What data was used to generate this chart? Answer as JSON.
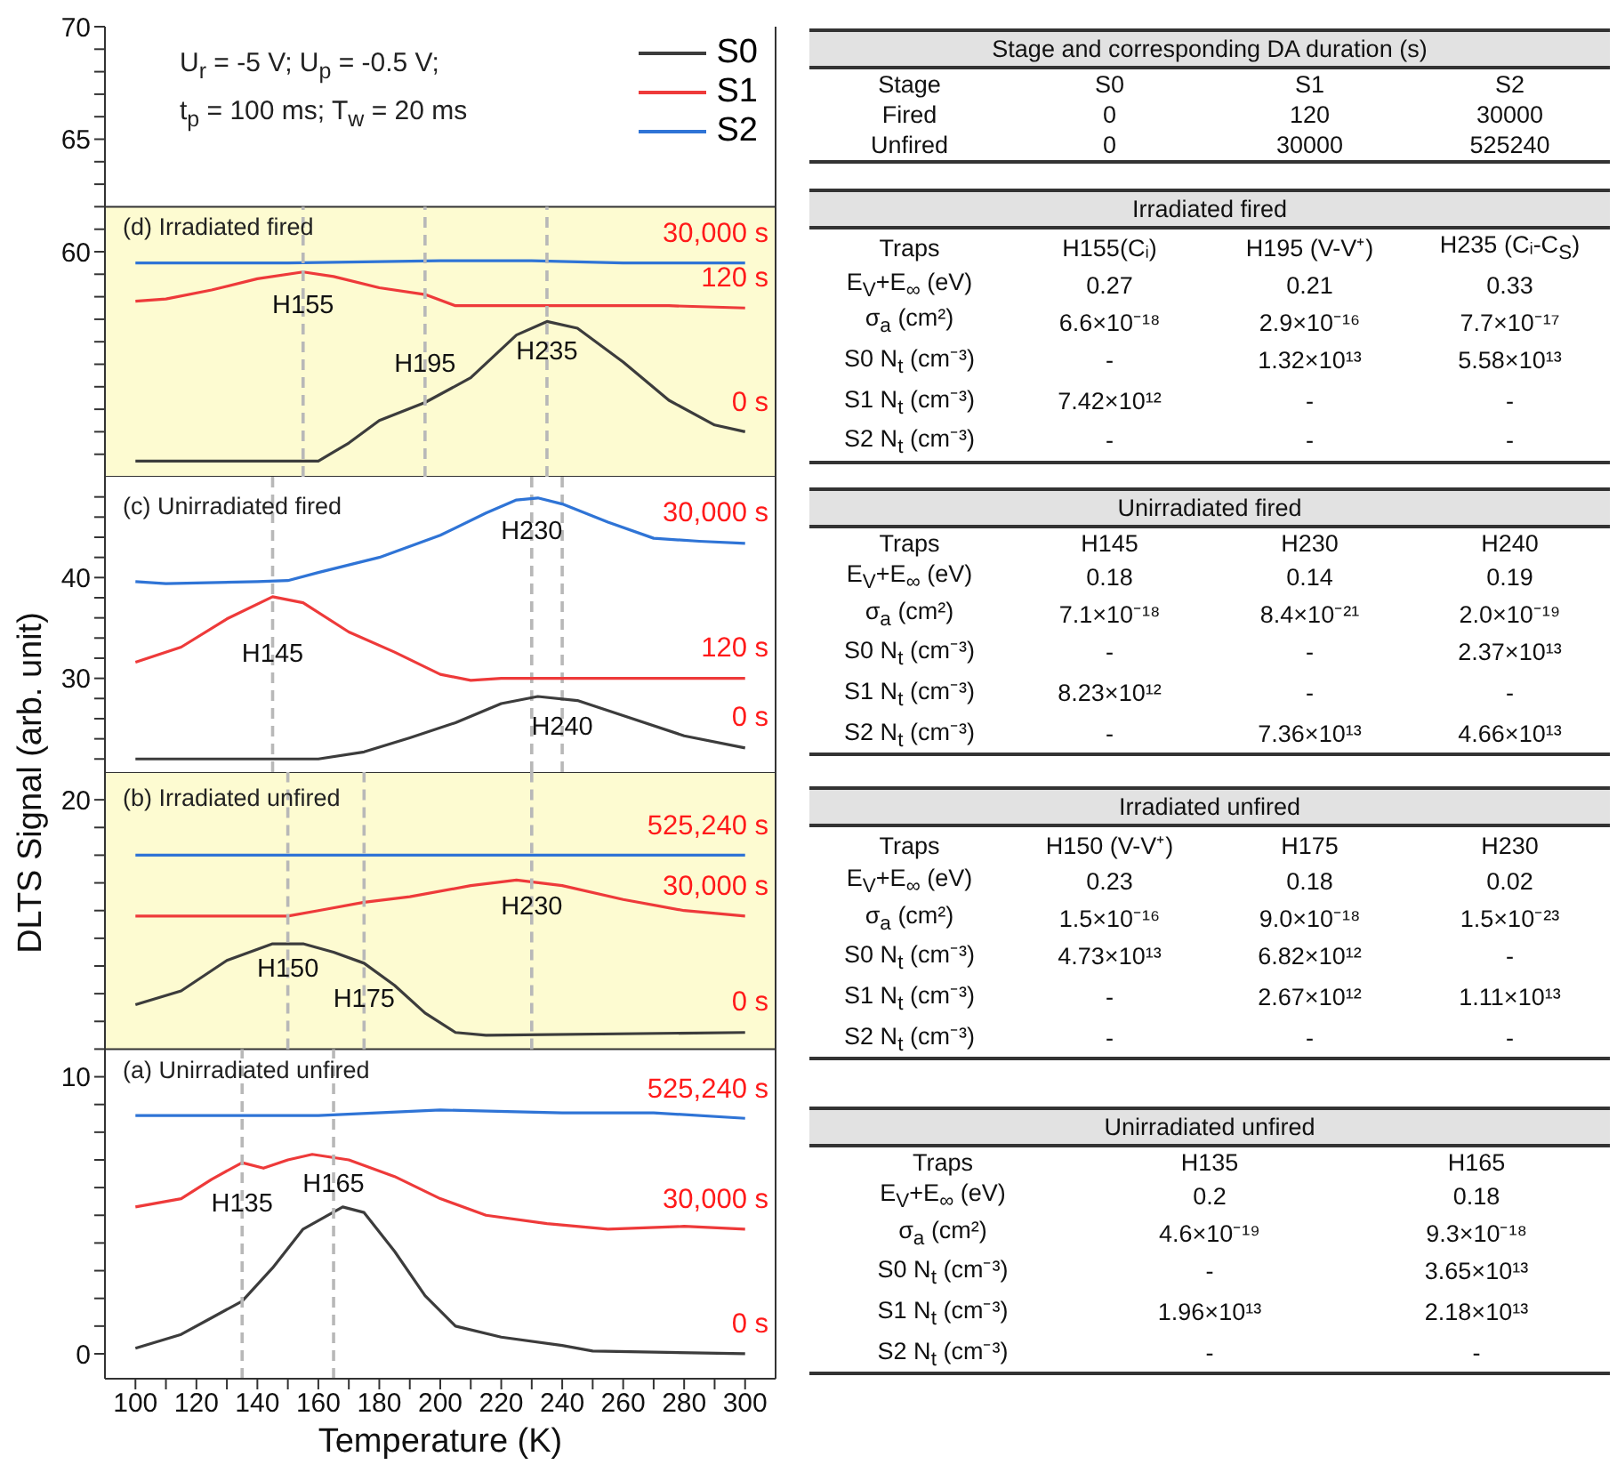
{
  "chart_data": [
    {
      "type": "line",
      "legend": "top right",
      "xlim": [
        90,
        310
      ],
      "ylim": [
        50,
        70
      ],
      "yticks": [
        {
          "value": 51,
          "label": null
        },
        {
          "value": 52,
          "label": null
        },
        {
          "value": 53,
          "label": null
        },
        {
          "value": 54,
          "label": null
        },
        {
          "value": 55,
          "label": null
        },
        {
          "value": 56,
          "label": null
        },
        {
          "value": 57,
          "label": null
        },
        {
          "value": 58,
          "label": null
        },
        {
          "value": 59,
          "label": null
        },
        60,
        {
          "value": 61,
          "label": null
        },
        {
          "value": 62,
          "label": null
        },
        {
          "value": 63,
          "label": null
        },
        {
          "value": 64,
          "label": null
        },
        65,
        {
          "value": 66,
          "label": null
        },
        {
          "value": 67,
          "label": null
        },
        {
          "value": 68,
          "label": null
        },
        {
          "value": 69,
          "label": null
        },
        70
      ],
      "tick_labels": "y",
      "bands": [
        {
          "axis": "y",
          "from": 50,
          "to": 62,
          "color": "#fdfbd1"
        }
      ],
      "annotations": [
        "U$_{r}$ = -5 V; U$_{p}$ = -0.5 V;",
        "t$_{p}$ = 100 ms; T$_{w}$ = 20 ms",
        "(d) Irradiated fired",
        {
          "text": "H155",
          "x": 155,
          "y": 57.6
        },
        {
          "text": "H195",
          "x": 195,
          "y": 55.0
        },
        {
          "text": "H235",
          "x": 235,
          "y": 55.5
        },
        {
          "text": "30,000 s",
          "x": 300,
          "y": 59.5
        },
        {
          "text": "120 s",
          "x": 300,
          "y": 57.5
        },
        {
          "text": "0 s",
          "x": 300,
          "y": 52.0
        }
      ],
      "series": [
        {
          "name": "S0",
          "color": "#3c3c3c",
          "x": [
            100,
            160,
            170,
            180,
            195,
            210,
            225,
            235,
            245,
            260,
            275,
            290,
            300
          ],
          "values": [
            50.7,
            50.7,
            51.5,
            52.5,
            53.3,
            54.4,
            56.3,
            56.9,
            56.6,
            55.1,
            53.4,
            52.3,
            52.0
          ]
        },
        {
          "name": "S1",
          "color": "#ee3a3a",
          "x": [
            100,
            110,
            125,
            140,
            155,
            165,
            180,
            195,
            205,
            220,
            250,
            275,
            300
          ],
          "values": [
            57.8,
            57.9,
            58.3,
            58.8,
            59.1,
            58.9,
            58.4,
            58.1,
            57.6,
            57.6,
            57.6,
            57.6,
            57.5
          ]
        },
        {
          "name": "S2",
          "color": "#2f74d6",
          "x": [
            100,
            150,
            200,
            230,
            260,
            300
          ],
          "values": [
            59.5,
            59.5,
            59.6,
            59.6,
            59.5,
            59.5
          ]
        },
        {
          "color": "#b8b8b8",
          "line_style": "dashed",
          "x": [
            155,
            155
          ],
          "values": [
            50,
            62
          ]
        },
        {
          "color": "#b8b8b8",
          "line_style": "dashed",
          "x": [
            195,
            195
          ],
          "values": [
            50,
            62
          ]
        },
        {
          "color": "#b8b8b8",
          "line_style": "dashed",
          "x": [
            235,
            235
          ],
          "values": [
            50,
            62
          ]
        }
      ]
    },
    {
      "type": "line",
      "xlim": [
        90,
        310
      ],
      "ylim": [
        20.7,
        50
      ],
      "yticks": [
        {
          "value": 22,
          "label": null
        },
        {
          "value": 24,
          "label": null
        },
        {
          "value": 26,
          "label": null
        },
        {
          "value": 28,
          "label": null
        },
        30,
        {
          "value": 32,
          "label": null
        },
        {
          "value": 34,
          "label": null
        },
        {
          "value": 36,
          "label": null
        },
        {
          "value": 38,
          "label": null
        },
        40,
        {
          "value": 42,
          "label": null
        },
        {
          "value": 44,
          "label": null
        },
        {
          "value": 46,
          "label": null
        },
        {
          "value": 48,
          "label": null
        }
      ],
      "tick_labels": "y",
      "ylabel": "DLTS Signal (arb. unit)",
      "annotations": [
        "(c) Unirradiated fired",
        {
          "text": "H230",
          "x": 230,
          "y": 44.6
        },
        {
          "text": "H145",
          "x": 145,
          "y": 32.4
        },
        {
          "text": "H240",
          "x": 240,
          "y": 25.1
        },
        {
          "text": "30,000 s",
          "x": 300,
          "y": 43.4
        },
        {
          "text": "120 s",
          "x": 300,
          "y": 30.0
        },
        {
          "text": "0 s",
          "x": 300,
          "y": 23.1
        }
      ],
      "series": [
        {
          "color": "#2f74d6",
          "x": [
            100,
            110,
            140,
            150,
            160,
            180,
            200,
            215,
            225,
            232,
            240,
            255,
            270,
            285,
            300
          ],
          "values": [
            39.6,
            39.4,
            39.6,
            39.7,
            40.5,
            42.0,
            44.2,
            46.4,
            47.7,
            47.9,
            47.3,
            45.5,
            43.9,
            43.6,
            43.4
          ]
        },
        {
          "color": "#ee3a3a",
          "x": [
            100,
            115,
            130,
            145,
            155,
            170,
            185,
            200,
            210,
            220,
            300
          ],
          "values": [
            31.6,
            33.1,
            35.9,
            38.1,
            37.5,
            34.6,
            32.6,
            30.4,
            29.8,
            30.0,
            30.0
          ]
        },
        {
          "color": "#3c3c3c",
          "x": [
            100,
            150,
            160,
            175,
            190,
            205,
            220,
            232,
            245,
            260,
            280,
            300
          ],
          "values": [
            22.0,
            22.0,
            22.0,
            22.7,
            24.1,
            25.6,
            27.5,
            28.2,
            27.8,
            26.3,
            24.3,
            23.1
          ]
        }
      ],
      "ref_lines": [
        {
          "axis": "x",
          "value": 145,
          "color": "#b8b8b8",
          "line_style": "dashed"
        },
        {
          "axis": "x",
          "value": 230,
          "color": "#b8b8b8",
          "line_style": "dashed"
        },
        {
          "axis": "x",
          "value": 240,
          "color": "#b8b8b8",
          "line_style": "dashed"
        }
      ]
    },
    {
      "type": "line",
      "xlim": [
        90,
        310
      ],
      "xticks": [
        100,
        {
          "value": 110,
          "label": null
        },
        120,
        {
          "value": 130,
          "label": null
        },
        140,
        {
          "value": 150,
          "label": null
        },
        160,
        {
          "value": 170,
          "label": null
        },
        180,
        {
          "value": 190,
          "label": null
        },
        200,
        {
          "value": 210,
          "label": null
        },
        220,
        {
          "value": 230,
          "label": null
        },
        240,
        {
          "value": 250,
          "label": null
        },
        260,
        {
          "value": 270,
          "label": null
        },
        280,
        {
          "value": 290,
          "label": null
        },
        300
      ],
      "xlabel": "Temperature (K)",
      "ylim": [
        -0.9,
        21
      ],
      "yticks": [
        0,
        {
          "value": 1,
          "label": null
        },
        {
          "value": 2,
          "label": null
        },
        {
          "value": 3,
          "label": null
        },
        {
          "value": 4,
          "label": null
        },
        {
          "value": 5,
          "label": null
        },
        {
          "value": 6,
          "label": null
        },
        {
          "value": 7,
          "label": null
        },
        {
          "value": 8,
          "label": null
        },
        {
          "value": 9,
          "label": null
        },
        10,
        {
          "value": 11,
          "label": null
        },
        {
          "value": 12,
          "label": null
        },
        {
          "value": 13,
          "label": null
        },
        {
          "value": 14,
          "label": null
        },
        {
          "value": 15,
          "label": null
        },
        {
          "value": 16,
          "label": null
        },
        {
          "value": 17,
          "label": null
        },
        {
          "value": 18,
          "label": null
        },
        {
          "value": 19,
          "label": null
        },
        20
      ],
      "bands": [
        {
          "axis": "y",
          "from": 11,
          "to": 21,
          "color": "#fdfbd1"
        }
      ],
      "annotations": [
        "(b) Irradiated unfired",
        "(a) Unirradiated unfired",
        {
          "text": "H150",
          "x": 150,
          "y": 13.9
        },
        {
          "text": "H175",
          "x": 175,
          "y": 12.8
        },
        {
          "text": "H230",
          "x": 230,
          "y": 16.1
        },
        {
          "text": "525,240 s",
          "x": 300,
          "y": 18.0
        },
        {
          "text": "30,000 s",
          "x": 300,
          "y": 15.8
        },
        {
          "text": "0 s",
          "x": 300,
          "y": 11.6
        },
        {
          "text": "H135",
          "x": 135,
          "y": 5.4
        },
        {
          "text": "H165",
          "x": 165,
          "y": 6.1
        },
        {
          "text": "525,240 s",
          "x": 300,
          "y": 8.5
        },
        {
          "text": "30,000 s",
          "x": 300,
          "y": 4.5
        },
        {
          "text": "0 s",
          "x": 300,
          "y": 0.0
        }
      ],
      "series": [
        {
          "color": "#2f74d6",
          "x": [
            100,
            200,
            300
          ],
          "values": [
            18.0,
            18.0,
            18.0
          ]
        },
        {
          "color": "#ee3a3a",
          "x": [
            100,
            150,
            160,
            175,
            190,
            210,
            225,
            240,
            260,
            280,
            300
          ],
          "values": [
            15.8,
            15.8,
            16.0,
            16.3,
            16.5,
            16.9,
            17.1,
            16.9,
            16.4,
            16.0,
            15.8
          ]
        },
        {
          "color": "#3c3c3c",
          "x": [
            100,
            115,
            130,
            145,
            155,
            165,
            175,
            185,
            195,
            205,
            215,
            300
          ],
          "values": [
            12.6,
            13.1,
            14.2,
            14.8,
            14.8,
            14.5,
            14.1,
            13.3,
            12.3,
            11.6,
            11.5,
            11.6
          ]
        },
        {
          "color": "#2f74d6",
          "x": [
            100,
            160,
            200,
            240,
            270,
            300
          ],
          "values": [
            8.6,
            8.6,
            8.8,
            8.7,
            8.7,
            8.5
          ]
        },
        {
          "color": "#ee3a3a",
          "x": [
            100,
            115,
            125,
            135,
            142,
            150,
            158,
            170,
            185,
            200,
            215,
            235,
            255,
            280,
            300
          ],
          "values": [
            5.3,
            5.6,
            6.3,
            6.9,
            6.7,
            7.0,
            7.2,
            7.0,
            6.4,
            5.6,
            5.0,
            4.7,
            4.5,
            4.6,
            4.5
          ]
        },
        {
          "color": "#3c3c3c",
          "x": [
            100,
            115,
            125,
            135,
            145,
            155,
            168,
            175,
            185,
            195,
            205,
            220,
            240,
            250,
            300
          ],
          "values": [
            0.2,
            0.7,
            1.3,
            1.9,
            3.1,
            4.5,
            5.3,
            5.1,
            3.7,
            2.1,
            1.0,
            0.6,
            0.3,
            0.1,
            0.0
          ]
        },
        {
          "color": "#b8b8b8",
          "line_style": "dashed",
          "x": [
            150,
            150
          ],
          "values": [
            11,
            21
          ]
        },
        {
          "color": "#b8b8b8",
          "line_style": "dashed",
          "x": [
            175,
            175
          ],
          "values": [
            11,
            21
          ]
        },
        {
          "color": "#b8b8b8",
          "line_style": "dashed",
          "x": [
            230,
            230
          ],
          "values": [
            11,
            21
          ]
        },
        {
          "color": "#b8b8b8",
          "line_style": "dashed",
          "x": [
            135,
            135
          ],
          "values": [
            -0.9,
            11
          ]
        },
        {
          "color": "#b8b8b8",
          "line_style": "dashed",
          "x": [
            165,
            165
          ],
          "values": [
            -0.9,
            11
          ]
        }
      ]
    },
    {
      "type": "other",
      "title": "Stage and corresponding DA duration (s)",
      "cell_labels": [
        [
          "Stage",
          "S0",
          "S1",
          "S2"
        ],
        [
          "Fired",
          "0",
          "120",
          "30000"
        ],
        [
          "Unfired",
          "0",
          "30000",
          "525240"
        ]
      ]
    },
    {
      "type": "other",
      "title": "Irradiated fired",
      "cell_labels": [
        [
          "Traps",
          "H155(Cᵢ)",
          "H195 (V-V⁺)",
          "H235 (Cᵢ-C$_{S}$)"
        ],
        [
          "E$_{V}$+E$_{∞}$ (eV)",
          "0.27",
          "0.21",
          "0.33"
        ],
        [
          "σ$_{a}$ (cm²)",
          "6.6×10⁻¹⁸",
          "2.9×10⁻¹⁶",
          "7.7×10⁻¹⁷"
        ],
        [
          "S0 N$_{t}$ (cm⁻³)",
          "-",
          "1.32×10¹³",
          "5.58×10¹³"
        ],
        [
          "S1 N$_{t}$ (cm⁻³)",
          "7.42×10¹²",
          "-",
          "-"
        ],
        [
          "S2 N$_{t}$ (cm⁻³)",
          "-",
          "-",
          "-"
        ]
      ]
    },
    {
      "type": "other",
      "title": "Unirradiated fired",
      "cell_labels": [
        [
          "Traps",
          "H145",
          "H230",
          "H240"
        ],
        [
          "E$_{V}$+E$_{∞}$ (eV)",
          "0.18",
          "0.14",
          "0.19"
        ],
        [
          "σ$_{a}$ (cm²)",
          "7.1×10⁻¹⁸",
          "8.4×10⁻²¹",
          "2.0×10⁻¹⁹"
        ],
        [
          "S0 N$_{t}$ (cm⁻³)",
          "-",
          "-",
          "2.37×10¹³"
        ],
        [
          "S1 N$_{t}$ (cm⁻³)",
          "8.23×10¹²",
          "-",
          "-"
        ],
        [
          "S2 N$_{t}$ (cm⁻³)",
          "-",
          "7.36×10¹³",
          "4.66×10¹³"
        ]
      ]
    },
    {
      "type": "other",
      "title": "Irradiated unfired",
      "cell_labels": [
        [
          "Traps",
          "H150 (V-V⁺)",
          "H175",
          "H230"
        ],
        [
          "E$_{V}$+E$_{∞}$ (eV)",
          "0.23",
          "0.18",
          "0.02"
        ],
        [
          "σ$_{a}$ (cm²)",
          "1.5×10⁻¹⁶",
          "9.0×10⁻¹⁸",
          "1.5×10⁻²³"
        ],
        [
          "S0 N$_{t}$ (cm⁻³)",
          "4.73×10¹³",
          "6.82×10¹²",
          "-"
        ],
        [
          "S1 N$_{t}$ (cm⁻³)",
          "-",
          "2.67×10¹²",
          "1.11×10¹³"
        ],
        [
          "S2 N$_{t}$ (cm⁻³)",
          "-",
          "-",
          "-"
        ]
      ]
    },
    {
      "type": "other",
      "title": "Unirradiated unfired",
      "cell_labels": [
        [
          "Traps",
          "H135",
          "H165"
        ],
        [
          "E$_{V}$+E$_{∞}$ (eV)",
          "0.2",
          "0.18"
        ],
        [
          "σ$_{a}$ (cm²)",
          "4.6×10⁻¹⁹",
          "9.3×10⁻¹⁸"
        ],
        [
          "S0 N$_{t}$ (cm⁻³)",
          "-",
          "3.65×10¹³"
        ],
        [
          "S1 N$_{t}$ (cm⁻³)",
          "1.96×10¹³",
          "2.18×10¹³"
        ],
        [
          "S2 N$_{t}$ (cm⁻³)",
          "-",
          "-"
        ]
      ]
    }
  ]
}
